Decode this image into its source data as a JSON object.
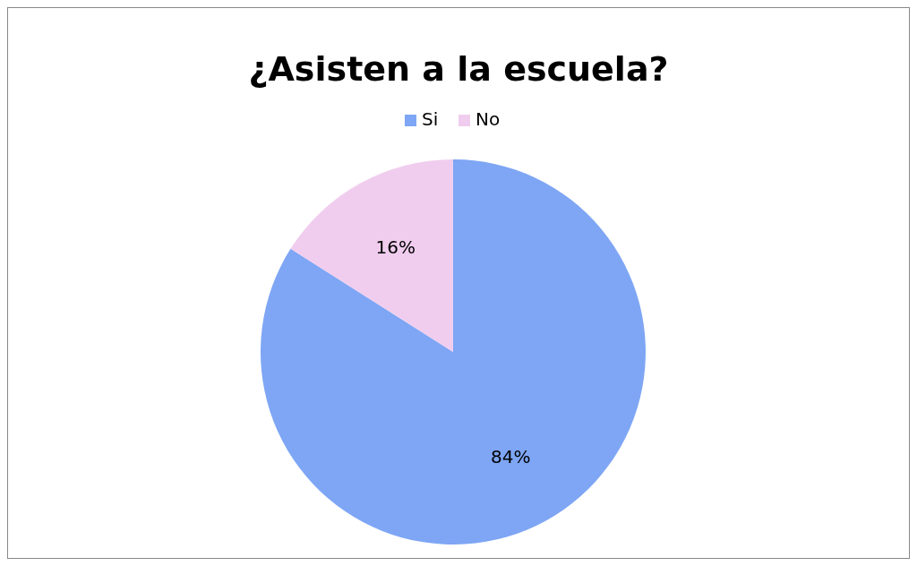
{
  "chart_data": {
    "type": "pie",
    "title": "¿Asisten a la escuela?",
    "categories": [
      "Si",
      "No"
    ],
    "values": [
      84,
      16
    ],
    "colors": [
      "#7ea6f4",
      "#f0cdee"
    ],
    "value_labels": [
      "84%",
      "16%"
    ],
    "legend": "top"
  }
}
